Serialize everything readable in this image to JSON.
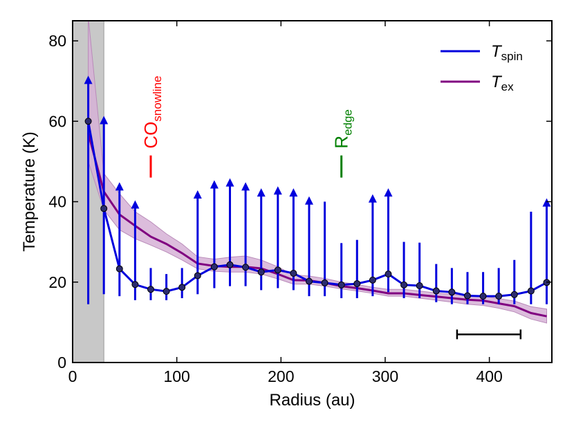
{
  "chart_data": {
    "type": "line",
    "xlabel": "Radius (au)",
    "ylabel": "Temperature (K)",
    "xlim": [
      0,
      460
    ],
    "ylim": [
      0,
      85
    ],
    "xticks": [
      0,
      100,
      200,
      300,
      400
    ],
    "yticks": [
      0,
      20,
      40,
      60,
      80
    ],
    "grid": false,
    "legend_position": "top-right",
    "colors": {
      "tspin": "#0000dd",
      "tex": "#800080",
      "tex_band": "#d6b2d6",
      "shade": "#c8c8c8",
      "snowline": "#ff0000",
      "edge": "#008000",
      "marker_fill": "#2c2c6e"
    },
    "shaded_region": {
      "x": [
        0,
        30
      ]
    },
    "series": [
      {
        "name": "T_spin",
        "legend_main": "T",
        "legend_sub": "spin",
        "x": [
          15,
          30,
          45,
          60,
          75,
          90,
          105,
          120,
          136,
          151,
          166,
          181,
          197,
          212,
          227,
          242,
          258,
          273,
          288,
          303,
          318,
          333,
          349,
          364,
          379,
          394,
          409,
          424,
          440,
          455
        ],
        "y": [
          60,
          38.3,
          23.3,
          19.4,
          18.2,
          17.7,
          18.7,
          21.6,
          23.8,
          24.3,
          23.7,
          22.5,
          23.0,
          22.2,
          20.2,
          19.8,
          19.3,
          19.6,
          20.5,
          22.0,
          19.3,
          19.1,
          17.8,
          17.5,
          16.6,
          16.5,
          16.5,
          16.9,
          17.8,
          19.9
        ],
        "err_low": [
          14.5,
          17,
          16.5,
          15.5,
          15.5,
          15.5,
          16,
          17,
          18.5,
          19,
          19,
          18,
          18.5,
          18,
          16.5,
          16.5,
          16,
          16,
          16.5,
          17.5,
          16,
          16,
          15,
          14.5,
          14.5,
          14.5,
          14.5,
          14.5,
          14.5,
          14.5
        ],
        "err_high": [
          71,
          61,
          44.5,
          40,
          23.5,
          22,
          23.5,
          42.5,
          45,
          45.5,
          44.5,
          43,
          43.5,
          43,
          41,
          40,
          29.7,
          30.5,
          41.5,
          43,
          30,
          29.8,
          24.5,
          23.5,
          22.5,
          22.5,
          23.5,
          25.5,
          37.5,
          40.5
        ],
        "lower_limit": [
          true,
          true,
          true,
          true,
          false,
          false,
          false,
          true,
          true,
          true,
          true,
          true,
          true,
          true,
          true,
          false,
          false,
          false,
          true,
          true,
          false,
          false,
          false,
          false,
          false,
          false,
          false,
          false,
          false,
          true
        ]
      },
      {
        "name": "T_ex",
        "legend_main": "T",
        "legend_sub": "ex",
        "x": [
          15,
          30,
          45,
          60,
          75,
          90,
          105,
          120,
          136,
          151,
          166,
          181,
          197,
          212,
          227,
          242,
          258,
          273,
          288,
          303,
          318,
          333,
          349,
          364,
          379,
          394,
          409,
          424,
          440,
          455
        ],
        "y": [
          57,
          42.5,
          36.8,
          34,
          31.3,
          29.5,
          27.2,
          24.6,
          24.0,
          23.8,
          23.8,
          23.4,
          22.0,
          20.5,
          20.4,
          19.8,
          19.0,
          18.5,
          17.9,
          17.2,
          17.2,
          16.8,
          16.4,
          16.0,
          15.6,
          15.4,
          14.7,
          14.0,
          12.3,
          11.5
        ],
        "band_low": [
          50,
          38,
          33,
          30.8,
          29.2,
          27.5,
          25.5,
          23.3,
          22.7,
          22.5,
          22.5,
          22.0,
          20.8,
          19.5,
          19.5,
          19.0,
          18.3,
          17.8,
          17.2,
          16.5,
          16.5,
          16.0,
          15.5,
          15.0,
          14.5,
          14.2,
          13.5,
          12.6,
          10.8,
          9.8
        ],
        "band_high": [
          86,
          47,
          42,
          37.5,
          35,
          32,
          29.5,
          26.3,
          25.7,
          26.2,
          26.5,
          25.5,
          23.8,
          21.8,
          21.5,
          20.9,
          20.0,
          19.4,
          18.7,
          18.2,
          18.2,
          17.8,
          17.3,
          17.0,
          16.6,
          16.5,
          15.9,
          15.3,
          13.9,
          13.3
        ]
      }
    ],
    "annotations": [
      {
        "name": "snowline",
        "main": "CO",
        "sub": "snowline",
        "x": 75,
        "y_bottom": 46,
        "y_top": 51.5
      },
      {
        "name": "edge",
        "main": "R",
        "sub": "edge",
        "x": 258,
        "y_bottom": 46,
        "y_top": 51.5
      }
    ],
    "scale_bar": {
      "x": [
        369,
        430
      ],
      "y": 7
    }
  }
}
